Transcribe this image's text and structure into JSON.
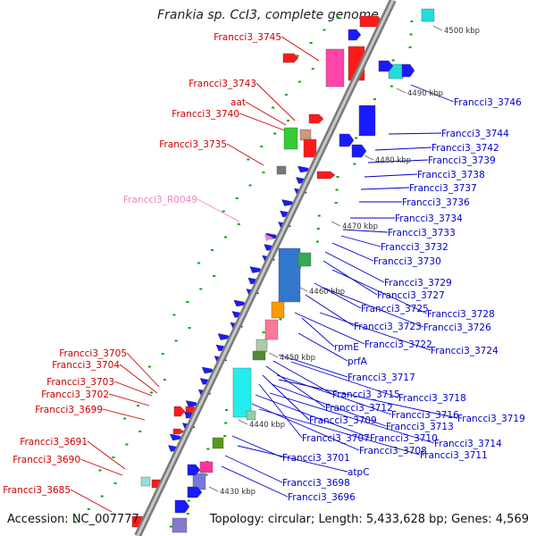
{
  "title": "Frankia sp. CcI3, complete genome",
  "accession": "Accession: NC_007777",
  "topology": "Topology: circular; Length: 5,433,628 bp; Genes: 4,569",
  "colors": {
    "reverse_label": "#cc0000",
    "forward_label": "#0000cc",
    "rna_label": "#ee88bb",
    "backbone": "#9a9a9a",
    "tick": "#00aa00"
  },
  "kbp_marks": [
    "4500 kbp",
    "4490 kbp",
    "4480 kbp",
    "4470 kbp",
    "4460 kbp",
    "4450 kbp",
    "4440 kbp",
    "4430 kbp"
  ],
  "reverse_labels": [
    "Francci3_3745",
    "Francci3_3743",
    "aat",
    "Francci3_3740",
    "Francci3_3735",
    "Francci3_3705",
    "Francci3_3704",
    "Francci3_3703",
    "Francci3_3702",
    "Francci3_3699",
    "Francci3_3691",
    "Francci3_3690",
    "Francci3_3685"
  ],
  "rna_labels": [
    "Francci3_R0049"
  ],
  "forward_labels": [
    "Francci3_3746",
    "Francci3_3744",
    "Francci3_3742",
    "Francci3_3739",
    "Francci3_3738",
    "Francci3_3737",
    "Francci3_3736",
    "Francci3_3734",
    "Francci3_3733",
    "Francci3_3732",
    "Francci3_3730",
    "Francci3_3729",
    "Francci3_3727",
    "Francci3_3728",
    "Francci3_3725",
    "Francci3_3726",
    "Francci3_3723",
    "rpmE",
    "Francci3_3724",
    "Francci3_3722",
    "prfA",
    "Francci3_3717",
    "Francci3_3715",
    "Francci3_3718",
    "Francci3_3712",
    "Francci3_3716",
    "Francci3_3719",
    "Francci3_3709",
    "Francci3_3713",
    "Francci3_3707",
    "Francci3_3710",
    "Francci3_3714",
    "Francci3_3708",
    "Francci3_3711",
    "Francci3_3701",
    "atpC",
    "Francci3_3698",
    "Francci3_3696"
  ]
}
